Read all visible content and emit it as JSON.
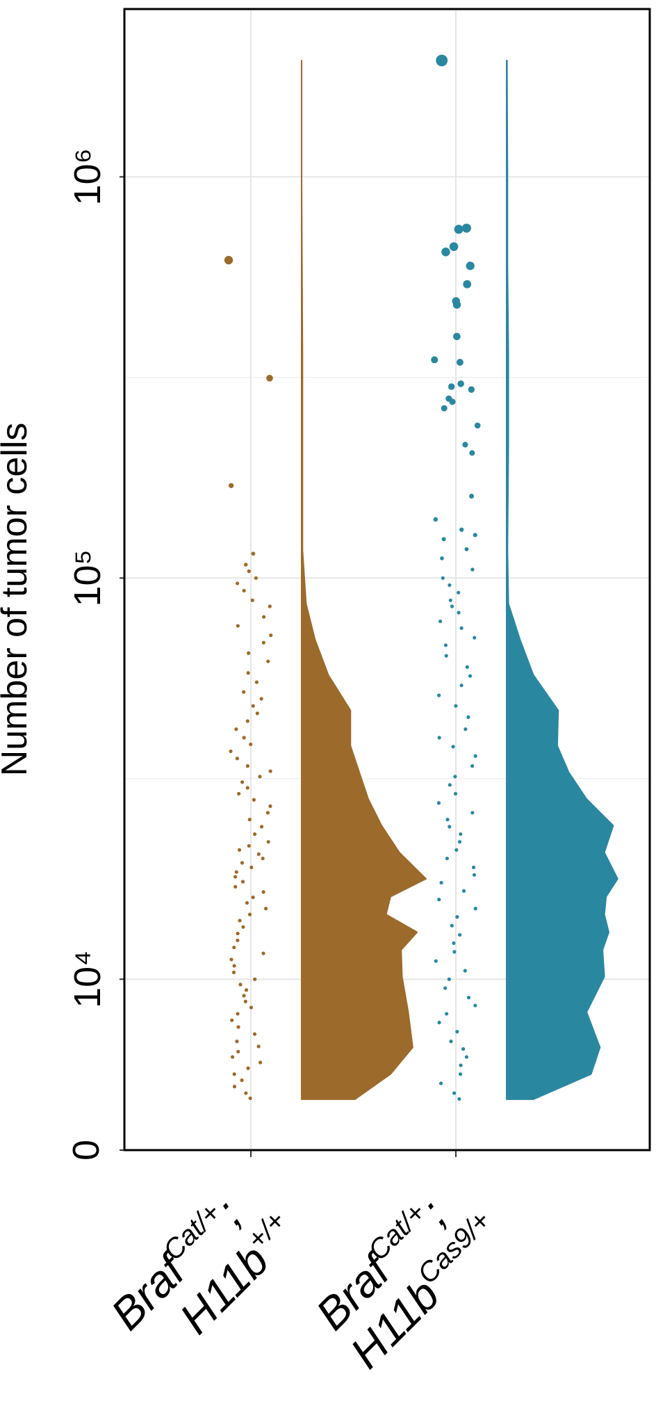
{
  "chart_data": {
    "type": "raincloud",
    "y_label": "Number of tumor cells",
    "yscale": "log",
    "ylim": [
      3750,
      2620000
    ],
    "yticks": [
      0,
      {
        "value": 10000,
        "label": "10⁴"
      },
      {
        "value": 100000,
        "label": "10⁵"
      },
      {
        "value": 1000000,
        "label": "10⁶"
      }
    ],
    "minor_grid": [
      31623,
      316228
    ],
    "grid": true,
    "density_y": [
      5020,
      5800,
      6760,
      8280,
      10150,
      11830,
      13100,
      14500,
      16060,
      17800,
      20700,
      24150,
      28130,
      32760,
      38180,
      46790,
      57360,
      70300,
      86300,
      117200,
      216000,
      359000,
      598000,
      995000,
      1950000
    ],
    "series": [
      {
        "label_lines": [
          {
            "base": "Braf",
            "sup": "Cat/+",
            "end": ";"
          },
          {
            "base": "H11b",
            "sup": "+/+"
          }
        ],
        "color": "#9c6a2a",
        "values": [
          620000,
          315000,
          170000,
          115000,
          108000,
          104000,
          100000,
          97000,
          93000,
          88000,
          85000,
          80000,
          76000,
          72000,
          69000,
          65000,
          62000,
          58000,
          55000,
          52000,
          50000,
          48000,
          46000,
          44000,
          42000,
          40000,
          38500,
          37000,
          35500,
          34000,
          33000,
          32000,
          31000,
          30000,
          29000,
          28000,
          27000,
          26000,
          25000,
          24000,
          23000,
          22000,
          21500,
          21000,
          20500,
          20000,
          19500,
          19000,
          18500,
          18000,
          17500,
          17000,
          16500,
          16000,
          15500,
          15000,
          14500,
          14000,
          13500,
          13000,
          12500,
          12000,
          11600,
          11200,
          10800,
          10400,
          10000,
          9700,
          9400,
          9100,
          8800,
          8500,
          8200,
          7900,
          7600,
          7300,
          7000,
          6800,
          6600,
          6400,
          6200,
          6000,
          5800,
          5600,
          5400,
          5200,
          5050
        ],
        "density": [
          60,
          100,
          125,
          120,
          113,
          112,
          130,
          95,
          100,
          140,
          110,
          90,
          75,
          65,
          55,
          55,
          30,
          15,
          5,
          1,
          1,
          1,
          0.5,
          0,
          0
        ]
      },
      {
        "label_lines": [
          {
            "base": "Braf",
            "sup": "Cat/+",
            "end": ";"
          },
          {
            "base": "H11b",
            "sup": "Cas9/+"
          }
        ],
        "color": "#2a87a0",
        "values": [
          1950000,
          745000,
          740000,
          670000,
          650000,
          600000,
          540000,
          490000,
          480000,
          400000,
          350000,
          345000,
          305000,
          300000,
          295000,
          280000,
          275000,
          265000,
          240000,
          215000,
          205000,
          160000,
          140000,
          132000,
          128000,
          125000,
          118000,
          112000,
          105000,
          100000,
          96000,
          92000,
          88000,
          85000,
          82000,
          78000,
          75000,
          71000,
          68000,
          64000,
          60000,
          57000,
          54000,
          51000,
          48000,
          45000,
          42000,
          40000,
          38000,
          36000,
          34000,
          32000,
          30500,
          29000,
          27500,
          26000,
          25000,
          24000,
          23000,
          22000,
          21000,
          20000,
          19000,
          18200,
          17400,
          16600,
          15800,
          15000,
          14300,
          13600,
          12900,
          12300,
          11700,
          11100,
          10500,
          10000,
          9500,
          9000,
          8600,
          8200,
          7800,
          7400,
          7000,
          6700,
          6400,
          6100,
          5800,
          5500,
          5200,
          5030
        ],
        "density": [
          30,
          95,
          105,
          90,
          110,
          108,
          115,
          110,
          112,
          125,
          110,
          120,
          90,
          70,
          57,
          58,
          30,
          15,
          2,
          1,
          2,
          2,
          1,
          1,
          0.5
        ]
      }
    ]
  }
}
